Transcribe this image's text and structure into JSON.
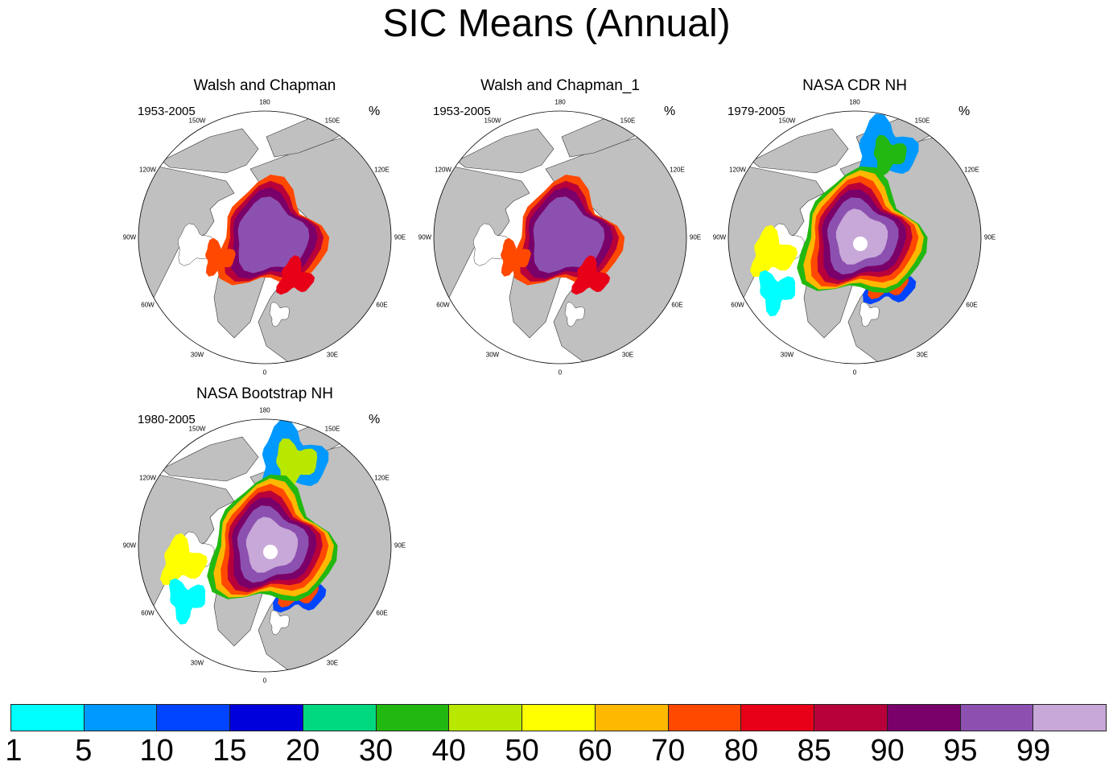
{
  "title": "SIC Means (Annual)",
  "panels": [
    {
      "name": "Walsh and Chapman",
      "period": "1953-2005",
      "unit": "%",
      "variant": "wc"
    },
    {
      "name": "Walsh and Chapman_1",
      "period": "1953-2005",
      "unit": "%",
      "variant": "wc"
    },
    {
      "name": "NASA CDR NH",
      "period": "1979-2005",
      "unit": "%",
      "variant": "cdr"
    },
    {
      "name": "NASA Bootstrap NH",
      "period": "1980-2005",
      "unit": "%",
      "variant": "bs"
    }
  ],
  "longitude_labels": [
    "180",
    "150E",
    "120E",
    "90E",
    "60E",
    "30E",
    "0",
    "30W",
    "60W",
    "90W",
    "120W",
    "150W"
  ],
  "colorbar": {
    "labels": [
      "1",
      "5",
      "10",
      "15",
      "20",
      "30",
      "40",
      "50",
      "60",
      "70",
      "80",
      "85",
      "90",
      "95",
      "99"
    ],
    "colors": [
      "#00ffff",
      "#0099ff",
      "#0044ff",
      "#0000dd",
      "#00d880",
      "#22b811",
      "#b8e800",
      "#ffff00",
      "#ffb800",
      "#ff4800",
      "#e80018",
      "#b8003a",
      "#7a006a",
      "#8c50b0",
      "#c8a8d8"
    ]
  },
  "map_colors": {
    "land": "#c0c0c0",
    "ocean": "#ffffff",
    "hole": "#ffffff"
  }
}
